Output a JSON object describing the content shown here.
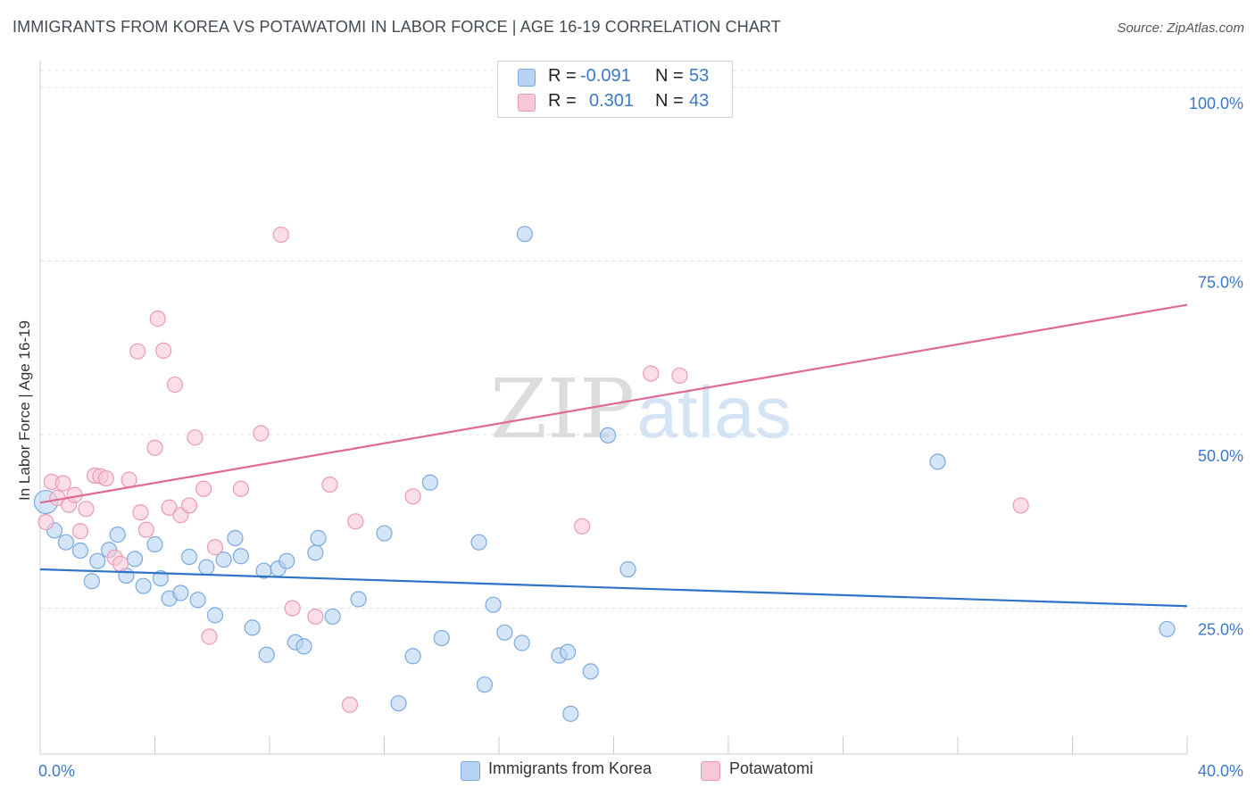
{
  "header": {
    "title": "IMMIGRANTS FROM KOREA VS POTAWATOMI IN LABOR FORCE | AGE 16-19 CORRELATION CHART",
    "source": "Source: ZipAtlas.com"
  },
  "watermark": {
    "zip": "ZIP",
    "atlas": "atlas"
  },
  "legend": {
    "rows": [
      {
        "r_label": "R =",
        "r_value": "-0.091",
        "n_label": "N =",
        "n_value": "53"
      },
      {
        "r_label": "R =",
        "r_value": "0.301",
        "n_label": "N =",
        "n_value": "43"
      }
    ]
  },
  "bottom_legend": {
    "korea": "Immigrants from Korea",
    "potawatomi": "Potawatomi"
  },
  "colors": {
    "korea_fill": "#b8d4f4",
    "korea_stroke": "#7aa9e0",
    "korea_line": "#2f74c8",
    "pota_fill": "#f8c8d6",
    "pota_stroke": "#ec9ab3",
    "pota_line": "#e06a93",
    "tick_label": "#3a78c9",
    "grid": "#dde1e6"
  },
  "chart_data": {
    "type": "scatter",
    "title": "IMMIGRANTS FROM KOREA VS POTAWATOMI IN LABOR FORCE | AGE 16-19 CORRELATION CHART",
    "xlabel": "",
    "ylabel": "In Labor Force | Age 16-19",
    "xlim": [
      0,
      40
    ],
    "ylim": [
      0,
      105
    ],
    "x_tick_labels": [
      "0.0%",
      "40.0%"
    ],
    "y_ticks": [
      25,
      50,
      75,
      100
    ],
    "y_tick_labels": [
      "25.0%",
      "50.0%",
      "75.0%",
      "100.0%"
    ],
    "grid": true,
    "legend_position": "top-center",
    "series": [
      {
        "name": "Immigrants from Korea",
        "r": -0.091,
        "n": 53,
        "trend": {
          "x": [
            0,
            40
          ],
          "y": [
            30.6,
            25.3
          ]
        },
        "points": [
          {
            "x": 0.2,
            "y": 40.3,
            "big": true
          },
          {
            "x": 0.5,
            "y": 36.2
          },
          {
            "x": 0.9,
            "y": 34.5
          },
          {
            "x": 1.4,
            "y": 33.3
          },
          {
            "x": 1.8,
            "y": 28.9
          },
          {
            "x": 2.0,
            "y": 31.8
          },
          {
            "x": 2.4,
            "y": 33.4
          },
          {
            "x": 2.7,
            "y": 35.6
          },
          {
            "x": 3.0,
            "y": 29.7
          },
          {
            "x": 3.3,
            "y": 32.1
          },
          {
            "x": 3.6,
            "y": 28.2
          },
          {
            "x": 4.0,
            "y": 34.2
          },
          {
            "x": 4.2,
            "y": 29.3
          },
          {
            "x": 4.5,
            "y": 26.4
          },
          {
            "x": 4.9,
            "y": 27.2
          },
          {
            "x": 5.2,
            "y": 32.4
          },
          {
            "x": 5.5,
            "y": 26.2
          },
          {
            "x": 5.8,
            "y": 30.9
          },
          {
            "x": 6.1,
            "y": 24.0
          },
          {
            "x": 6.4,
            "y": 32.0
          },
          {
            "x": 6.8,
            "y": 35.1
          },
          {
            "x": 7.0,
            "y": 32.5
          },
          {
            "x": 7.4,
            "y": 22.2
          },
          {
            "x": 7.8,
            "y": 30.4
          },
          {
            "x": 7.9,
            "y": 18.3
          },
          {
            "x": 8.3,
            "y": 30.7
          },
          {
            "x": 8.6,
            "y": 31.8
          },
          {
            "x": 8.9,
            "y": 20.1
          },
          {
            "x": 9.2,
            "y": 19.5
          },
          {
            "x": 9.6,
            "y": 33.0
          },
          {
            "x": 9.7,
            "y": 35.1
          },
          {
            "x": 10.2,
            "y": 23.8
          },
          {
            "x": 11.1,
            "y": 26.3
          },
          {
            "x": 12.0,
            "y": 35.8
          },
          {
            "x": 12.5,
            "y": 11.3
          },
          {
            "x": 13.0,
            "y": 18.1
          },
          {
            "x": 13.6,
            "y": 43.1
          },
          {
            "x": 14.0,
            "y": 20.7
          },
          {
            "x": 15.3,
            "y": 34.5
          },
          {
            "x": 15.5,
            "y": 14.0
          },
          {
            "x": 15.8,
            "y": 25.5
          },
          {
            "x": 16.2,
            "y": 21.5
          },
          {
            "x": 16.8,
            "y": 20.0
          },
          {
            "x": 16.9,
            "y": 78.9
          },
          {
            "x": 18.1,
            "y": 18.2
          },
          {
            "x": 18.4,
            "y": 18.7
          },
          {
            "x": 18.5,
            "y": 9.8
          },
          {
            "x": 19.2,
            "y": 15.9
          },
          {
            "x": 19.8,
            "y": 49.9
          },
          {
            "x": 20.5,
            "y": 30.6
          },
          {
            "x": 31.3,
            "y": 46.1
          },
          {
            "x": 39.3,
            "y": 22.0
          },
          {
            "x": 17.6,
            "y": 101.0
          }
        ]
      },
      {
        "name": "Potawatomi",
        "r": 0.301,
        "n": 43,
        "trend": {
          "x": [
            0,
            40
          ],
          "y": [
            40.2,
            68.7
          ]
        },
        "points": [
          {
            "x": 0.2,
            "y": 37.4
          },
          {
            "x": 0.4,
            "y": 43.2
          },
          {
            "x": 0.6,
            "y": 40.9
          },
          {
            "x": 0.8,
            "y": 43.0
          },
          {
            "x": 1.0,
            "y": 39.9
          },
          {
            "x": 1.2,
            "y": 41.3
          },
          {
            "x": 1.4,
            "y": 36.1
          },
          {
            "x": 1.6,
            "y": 39.3
          },
          {
            "x": 1.9,
            "y": 44.1
          },
          {
            "x": 2.1,
            "y": 44.0
          },
          {
            "x": 2.3,
            "y": 43.7
          },
          {
            "x": 2.6,
            "y": 32.3
          },
          {
            "x": 2.8,
            "y": 31.4
          },
          {
            "x": 3.1,
            "y": 43.5
          },
          {
            "x": 3.4,
            "y": 62.0
          },
          {
            "x": 3.5,
            "y": 38.8
          },
          {
            "x": 3.7,
            "y": 36.3
          },
          {
            "x": 4.0,
            "y": 48.1
          },
          {
            "x": 4.1,
            "y": 66.7
          },
          {
            "x": 4.3,
            "y": 62.1
          },
          {
            "x": 4.5,
            "y": 39.5
          },
          {
            "x": 4.7,
            "y": 57.2
          },
          {
            "x": 4.9,
            "y": 38.4
          },
          {
            "x": 5.2,
            "y": 39.8
          },
          {
            "x": 5.4,
            "y": 49.6
          },
          {
            "x": 5.7,
            "y": 42.2
          },
          {
            "x": 5.9,
            "y": 20.9
          },
          {
            "x": 6.1,
            "y": 33.8
          },
          {
            "x": 7.0,
            "y": 42.2
          },
          {
            "x": 7.7,
            "y": 50.2
          },
          {
            "x": 8.4,
            "y": 78.8
          },
          {
            "x": 8.8,
            "y": 25.0
          },
          {
            "x": 9.6,
            "y": 23.8
          },
          {
            "x": 10.1,
            "y": 42.8
          },
          {
            "x": 10.8,
            "y": 11.1
          },
          {
            "x": 11.0,
            "y": 37.5
          },
          {
            "x": 13.0,
            "y": 41.1
          },
          {
            "x": 18.9,
            "y": 36.8
          },
          {
            "x": 21.3,
            "y": 58.8
          },
          {
            "x": 22.3,
            "y": 58.5
          },
          {
            "x": 34.2,
            "y": 39.8
          },
          {
            "x": 21.5,
            "y": 101.0
          },
          {
            "x": 17.8,
            "y": 101.0
          }
        ]
      }
    ]
  }
}
